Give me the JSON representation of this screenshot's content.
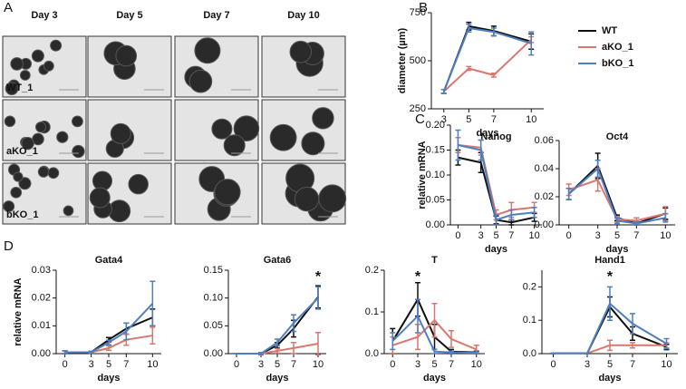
{
  "panel_labels": [
    "A",
    "B",
    "C",
    "D"
  ],
  "micrographs": {
    "columns": [
      "Day 3",
      "Day 5",
      "Day 7",
      "Day 10"
    ],
    "rows": [
      "WT_1",
      "aKO_1",
      "bKO_1"
    ]
  },
  "chart_data": [
    {
      "type": "line",
      "ylabel": "diameter (µm)",
      "xlabel": "days",
      "legend": "right",
      "x": [
        3,
        5,
        7,
        10
      ],
      "xlim": [
        2,
        11
      ],
      "xticks": [
        3,
        5,
        7,
        10
      ],
      "ylim": [
        250,
        750
      ],
      "yticks": [
        250,
        500,
        750
      ],
      "series": [
        {
          "name": "WT",
          "color": "#111111",
          "values": [
            340,
            680,
            655,
            600
          ],
          "errors": [
            10,
            20,
            25,
            40
          ]
        },
        {
          "name": "aKO_1",
          "color": "#d9776e",
          "values": [
            340,
            460,
            425,
            610
          ],
          "errors": [
            10,
            10,
            10,
            15
          ]
        },
        {
          "name": "bKO_1",
          "color": "#4f7fbf",
          "values": [
            340,
            670,
            650,
            590
          ],
          "errors": [
            10,
            20,
            20,
            60
          ]
        }
      ]
    },
    {
      "type": "line",
      "title": "Nanog",
      "ylabel": "relative mRNA",
      "xlabel": "days",
      "x": [
        0,
        3,
        5,
        7,
        10
      ],
      "xlim": [
        -1,
        11
      ],
      "xticks": [
        0,
        3,
        5,
        7,
        10
      ],
      "ylim": [
        0,
        0.2
      ],
      "yticks": [
        {
          "value": 0,
          "label": "0.00"
        },
        {
          "value": 0.05,
          "label": "0.05"
        },
        {
          "value": 0.1,
          "label": "0.10"
        },
        {
          "value": 0.15,
          "label": "0.15"
        },
        {
          "value": 0.2,
          "label": "0.20"
        }
      ],
      "series": [
        {
          "color": "#111111",
          "values": [
            0.135,
            0.125,
            0.01,
            0.005,
            0.015
          ],
          "errors": [
            0.015,
            0.02,
            0.008,
            0.005,
            0.008
          ]
        },
        {
          "color": "#d9776e",
          "values": [
            0.16,
            0.155,
            0.02,
            0.03,
            0.035
          ],
          "errors": [
            0.015,
            0.015,
            0.01,
            0.015,
            0.01
          ]
        },
        {
          "color": "#4f7fbf",
          "values": [
            0.16,
            0.15,
            0.01,
            0.02,
            0.025
          ],
          "errors": [
            0.03,
            0.02,
            0.01,
            0.01,
            0.01
          ]
        }
      ]
    },
    {
      "type": "line",
      "title": "Oct4",
      "xlabel": "days",
      "x": [
        0,
        3,
        5,
        7,
        10
      ],
      "xlim": [
        -1,
        11
      ],
      "xticks": [
        0,
        3,
        5,
        7,
        10
      ],
      "ylim": [
        0,
        0.06
      ],
      "yticks": [
        {
          "value": 0,
          "label": "0.00"
        },
        {
          "value": 0.02,
          "label": "0.02"
        },
        {
          "value": 0.04,
          "label": "0.04"
        },
        {
          "value": 0.06,
          "label": "0.06"
        }
      ],
      "series": [
        {
          "color": "#111111",
          "values": [
            0.022,
            0.042,
            0.005,
            0.001,
            0.008
          ],
          "errors": [
            0.004,
            0.009,
            0.002,
            0.001,
            0.004
          ]
        },
        {
          "color": "#d9776e",
          "values": [
            0.025,
            0.032,
            0.004,
            0.003,
            0.008
          ],
          "errors": [
            0.004,
            0.008,
            0.002,
            0.002,
            0.005
          ]
        },
        {
          "color": "#4f7fbf",
          "values": [
            0.022,
            0.04,
            0.003,
            0.001,
            0.005
          ],
          "errors": [
            0.004,
            0.006,
            0.002,
            0.001,
            0.003
          ]
        }
      ]
    },
    {
      "type": "line",
      "title": "Gata4",
      "ylabel": "relative mRNA",
      "xlabel": "days",
      "x": [
        0,
        3,
        5,
        7,
        10
      ],
      "xlim": [
        -1,
        11
      ],
      "xticks": [
        0,
        3,
        5,
        7,
        10
      ],
      "ylim": [
        0,
        0.03
      ],
      "yticks": [
        {
          "value": 0,
          "label": "0.00"
        },
        {
          "value": 0.01,
          "label": "0.01"
        },
        {
          "value": 0.02,
          "label": "0.02"
        },
        {
          "value": 0.03,
          "label": "0.03"
        }
      ],
      "series": [
        {
          "color": "#111111",
          "values": [
            0.0005,
            0.0005,
            0.005,
            0.009,
            0.013
          ],
          "errors": [
            0.0005,
            0.0003,
            0.0008,
            0.002,
            0.003
          ]
        },
        {
          "color": "#d9776e",
          "values": [
            0.0005,
            0.0005,
            0.002,
            0.005,
            0.0065
          ],
          "errors": [
            0.0005,
            0.0003,
            0.0008,
            0.002,
            0.003
          ]
        },
        {
          "color": "#4f7fbf",
          "values": [
            0.0005,
            0.0005,
            0.004,
            0.008,
            0.018
          ],
          "errors": [
            0.0005,
            0.0003,
            0.0008,
            0.003,
            0.008
          ]
        }
      ]
    },
    {
      "type": "line",
      "title": "Gata6",
      "xlabel": "days",
      "annotations": [
        {
          "text": "*",
          "x": 10
        }
      ],
      "x": [
        0,
        3,
        5,
        7,
        10
      ],
      "xlim": [
        -1,
        11
      ],
      "xticks": [
        0,
        3,
        5,
        7,
        10
      ],
      "ylim": [
        0,
        0.15
      ],
      "yticks": [
        {
          "value": 0,
          "label": "0.00"
        },
        {
          "value": 0.05,
          "label": "0.05"
        },
        {
          "value": 0.1,
          "label": "0.10"
        },
        {
          "value": 0.15,
          "label": "0.15"
        }
      ],
      "series": [
        {
          "color": "#111111",
          "values": [
            0,
            0,
            0.015,
            0.045,
            0.102
          ],
          "errors": [
            0,
            0.002,
            0.005,
            0.015,
            0.02
          ]
        },
        {
          "color": "#d9776e",
          "values": [
            0,
            0,
            0.005,
            0.01,
            0.018
          ],
          "errors": [
            0,
            0.002,
            0.004,
            0.01,
            0.02
          ]
        },
        {
          "color": "#4f7fbf",
          "values": [
            0,
            0,
            0.02,
            0.055,
            0.1
          ],
          "errors": [
            0,
            0.002,
            0.006,
            0.015,
            0.02
          ]
        }
      ]
    },
    {
      "type": "line",
      "title": "T",
      "xlabel": "days",
      "annotations": [
        {
          "text": "*",
          "x": 3
        }
      ],
      "x": [
        0,
        3,
        5,
        7,
        10
      ],
      "xlim": [
        -1,
        11
      ],
      "xticks": [
        0,
        3,
        5,
        7,
        10
      ],
      "ylim": [
        0,
        0.2
      ],
      "yticks": [
        {
          "value": 0,
          "label": "0.0"
        },
        {
          "value": 0.1,
          "label": "0.1"
        },
        {
          "value": 0.2,
          "label": "0.2"
        }
      ],
      "series": [
        {
          "color": "#111111",
          "values": [
            0.03,
            0.13,
            0.04,
            0.005,
            0.003
          ],
          "errors": [
            0.03,
            0.04,
            0.03,
            0.005,
            0.003
          ]
        },
        {
          "color": "#d9776e",
          "values": [
            0.02,
            0.04,
            0.08,
            0.035,
            0.01
          ],
          "errors": [
            0.02,
            0.03,
            0.04,
            0.02,
            0.01
          ]
        },
        {
          "color": "#4f7fbf",
          "values": [
            0.03,
            0.09,
            0.005,
            0.003,
            0.002
          ],
          "errors": [
            0.02,
            0.04,
            0.005,
            0.003,
            0.002
          ]
        }
      ]
    },
    {
      "type": "line",
      "title": "Hand1",
      "xlabel": "days",
      "annotations": [
        {
          "text": "*",
          "x": 5
        }
      ],
      "x": [
        0,
        3,
        5,
        7,
        10
      ],
      "xlim": [
        -1,
        11
      ],
      "xticks": [
        0,
        3,
        5,
        7,
        10
      ],
      "ylim": [
        0,
        0.25
      ],
      "yticks": [
        {
          "value": 0,
          "label": "0.0"
        },
        {
          "value": 0.1,
          "label": "0.1"
        },
        {
          "value": 0.2,
          "label": "0.2"
        }
      ],
      "series": [
        {
          "color": "#111111",
          "values": [
            0.001,
            0.001,
            0.14,
            0.06,
            0.02
          ],
          "errors": [
            0.001,
            0.001,
            0.03,
            0.02,
            0.008
          ]
        },
        {
          "color": "#d9776e",
          "values": [
            0.001,
            0.001,
            0.025,
            0.025,
            0.025
          ],
          "errors": [
            0.001,
            0.001,
            0.015,
            0.008,
            0.008
          ]
        },
        {
          "color": "#4f7fbf",
          "values": [
            0.001,
            0.001,
            0.15,
            0.09,
            0.03
          ],
          "errors": [
            0.001,
            0.001,
            0.05,
            0.03,
            0.015
          ]
        }
      ]
    }
  ]
}
